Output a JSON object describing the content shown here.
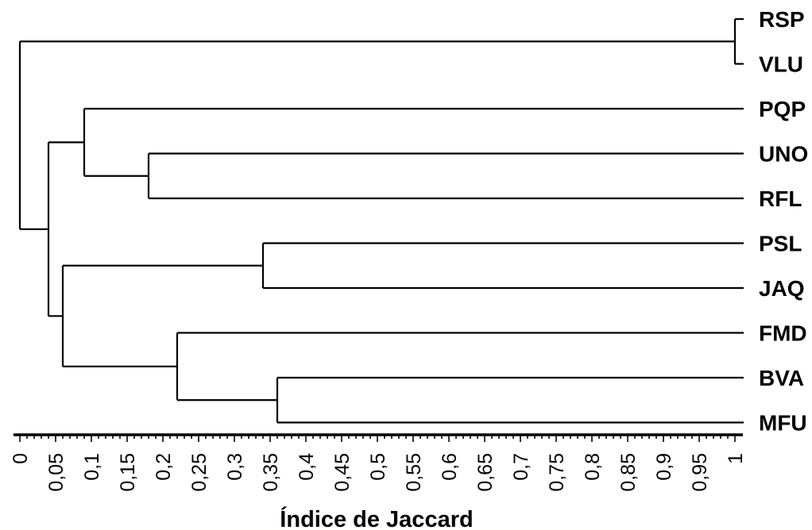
{
  "chart_data": {
    "type": "dendrogram",
    "orientation": "horizontal",
    "xlabel": "Índice de Jaccard",
    "xlim": [
      0,
      1
    ],
    "x_ticks": [
      0,
      0.05,
      0.1,
      0.15,
      0.2,
      0.25,
      0.3,
      0.35,
      0.4,
      0.45,
      0.5,
      0.55,
      0.6,
      0.65,
      0.7,
      0.75,
      0.8,
      0.85,
      0.9,
      0.95,
      1
    ],
    "x_tick_labels": [
      "0",
      "0,05",
      "0,1",
      "0,15",
      "0,2",
      "0,25",
      "0,3",
      "0,35",
      "0,4",
      "0,45",
      "0,5",
      "0,55",
      "0,6",
      "0,65",
      "0,7",
      "0,75",
      "0,8",
      "0,85",
      "0,9",
      "0,95",
      "1"
    ],
    "leaves": [
      "RSP",
      "VLU",
      "PQP",
      "UNO",
      "RFL",
      "PSL",
      "JAQ",
      "FMD",
      "BVA",
      "MFU"
    ],
    "merges": [
      {
        "a": "RSP",
        "b": "VLU",
        "similarity": 1.0
      },
      {
        "a": "BVA",
        "b": "MFU",
        "similarity": 0.36
      },
      {
        "a": "PSL",
        "b": "JAQ",
        "similarity": 0.34
      },
      {
        "a": "FMD",
        "b": "BVA+MFU",
        "similarity": 0.22
      },
      {
        "a": "UNO",
        "b": "RFL",
        "similarity": 0.18
      },
      {
        "a": "PQP",
        "b": "UNO+RFL",
        "similarity": 0.09
      },
      {
        "a": "PSL+JAQ",
        "b": "FMD+BVA+MFU",
        "similarity": 0.06
      },
      {
        "a": "PQP+UNO+RFL",
        "b": "PSL+JAQ+FMD+BVA+MFU",
        "similarity": 0.04
      },
      {
        "a": "RSP+VLU",
        "b": "PQP+UNO+RFL+PSL+JAQ+FMD+BVA+MFU",
        "similarity": 0.0
      }
    ]
  }
}
